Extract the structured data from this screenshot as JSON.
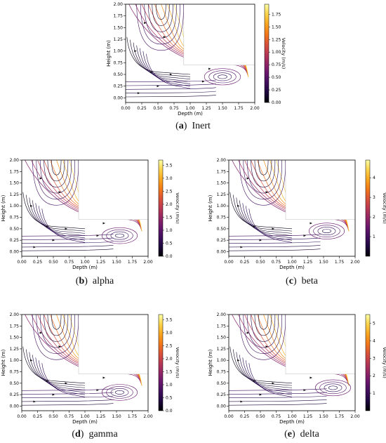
{
  "chart_data": [
    {
      "id": "a",
      "type": "streamplot",
      "caption_letter": "a",
      "caption_text": "Inert",
      "xlabel": "Depth (m)",
      "ylabel": "Height (m)",
      "colorbar_label": "Velocity (m/s)",
      "xlim": [
        0,
        2.0
      ],
      "ylim": [
        -0.1,
        2.0
      ],
      "xticks": [
        "0.00",
        "0.25",
        "0.50",
        "0.75",
        "1.00",
        "1.25",
        "1.50",
        "1.75",
        "2.00"
      ],
      "yticks": [
        "0.00",
        "0.25",
        "0.50",
        "0.75",
        "1.00",
        "1.25",
        "1.50",
        "1.75",
        "2.00"
      ],
      "cbar_ticks": [
        "0.00",
        "0.25",
        "0.50",
        "0.75",
        "1.00",
        "1.25",
        "1.50",
        "1.75"
      ],
      "cbar_max": 1.95,
      "colormap": "inferno",
      "vortex_center": [
        1.5,
        0.45
      ],
      "wall": {
        "x": 0.9,
        "y": 0.7
      },
      "grid": false
    },
    {
      "id": "b",
      "type": "streamplot",
      "caption_letter": "b",
      "caption_text": "alpha",
      "xlabel": "Depth (m)",
      "ylabel": "Height (m)",
      "colorbar_label": "Velocity (m/s)",
      "xlim": [
        0,
        2.0
      ],
      "ylim": [
        -0.1,
        2.0
      ],
      "xticks": [
        "0.00",
        "0.25",
        "0.50",
        "0.75",
        "1.00",
        "1.25",
        "1.50",
        "1.75",
        "2.00"
      ],
      "yticks": [
        "0.00",
        "0.25",
        "0.50",
        "0.75",
        "1.00",
        "1.25",
        "1.50",
        "1.75",
        "2.00"
      ],
      "cbar_ticks": [
        "0.0",
        "0.5",
        "1.0",
        "1.5",
        "2.0",
        "2.5",
        "3.0",
        "3.5"
      ],
      "cbar_max": 3.7,
      "colormap": "inferno",
      "vortex_center": [
        1.55,
        0.35
      ],
      "wall": {
        "x": 0.9,
        "y": 0.7
      },
      "grid": false
    },
    {
      "id": "c",
      "type": "streamplot",
      "caption_letter": "c",
      "caption_text": "beta",
      "xlabel": "Depth (m)",
      "ylabel": "Height (m)",
      "colorbar_label": "Velocity (m/s)",
      "xlim": [
        0,
        2.0
      ],
      "ylim": [
        -0.1,
        2.0
      ],
      "xticks": [
        "0.00",
        "0.25",
        "0.50",
        "0.75",
        "1.00",
        "1.25",
        "1.50",
        "1.75",
        "2.00"
      ],
      "yticks": [
        "0.00",
        "0.25",
        "0.50",
        "0.75",
        "1.00",
        "1.25",
        "1.50",
        "1.75",
        "2.00"
      ],
      "cbar_ticks": [
        "1",
        "2",
        "3",
        "4"
      ],
      "cbar_max": 4.9,
      "colormap": "inferno",
      "vortex_center": [
        1.55,
        0.45
      ],
      "wall": {
        "x": 0.9,
        "y": 0.7
      },
      "grid": false
    },
    {
      "id": "d",
      "type": "streamplot",
      "caption_letter": "d",
      "caption_text": "gamma",
      "xlabel": "Depth (m)",
      "ylabel": "Height (m)",
      "colorbar_label": "Velocity (m/s)",
      "xlim": [
        0,
        2.0
      ],
      "ylim": [
        -0.1,
        2.0
      ],
      "xticks": [
        "0.00",
        "0.25",
        "0.50",
        "0.75",
        "1.00",
        "1.25",
        "1.50",
        "1.75",
        "2.00"
      ],
      "yticks": [
        "0.00",
        "0.25",
        "0.50",
        "0.75",
        "1.00",
        "1.25",
        "1.50",
        "1.75",
        "2.00"
      ],
      "cbar_ticks": [
        "0.0",
        "0.5",
        "1.0",
        "1.5",
        "2.0",
        "2.5",
        "3.0",
        "3.5"
      ],
      "cbar_max": 3.7,
      "colormap": "inferno",
      "vortex_center": [
        1.55,
        0.3
      ],
      "wall": {
        "x": 0.9,
        "y": 0.7
      },
      "grid": false
    },
    {
      "id": "e",
      "type": "streamplot",
      "caption_letter": "e",
      "caption_text": "delta",
      "xlabel": "Depth (m)",
      "ylabel": "Height (m)",
      "colorbar_label": "Velocity (m/s)",
      "xlim": [
        0,
        2.0
      ],
      "ylim": [
        -0.1,
        2.0
      ],
      "xticks": [
        "0.00",
        "0.25",
        "0.50",
        "0.75",
        "1.00",
        "1.25",
        "1.50",
        "1.75",
        "2.00"
      ],
      "yticks": [
        "0.00",
        "0.25",
        "0.50",
        "0.75",
        "1.00",
        "1.25",
        "1.50",
        "1.75",
        "2.00"
      ],
      "cbar_ticks": [
        "1",
        "2",
        "3",
        "4",
        "5"
      ],
      "cbar_max": 5.5,
      "colormap": "inferno",
      "vortex_center": [
        1.65,
        0.4
      ],
      "wall": {
        "x": 0.9,
        "y": 0.7
      },
      "grid": false
    }
  ]
}
